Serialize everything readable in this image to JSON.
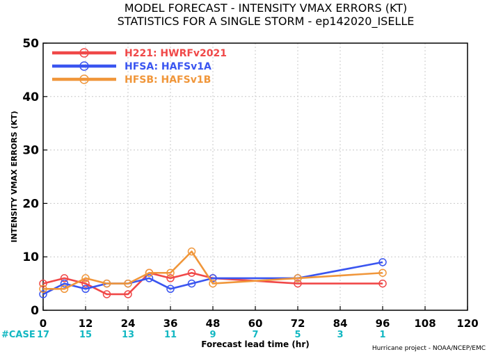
{
  "chart_data": {
    "type": "line",
    "title": "MODEL FORECAST - INTENSITY VMAX ERRORS (KT)",
    "subtitle": "STATISTICS FOR A SINGLE STORM - ep142020_ISELLE",
    "xlabel": "Forecast lead time (hr)",
    "ylabel": "INTENSITY VMAX ERRORS (KT)",
    "xlim": [
      0,
      120
    ],
    "ylim": [
      0,
      50
    ],
    "xticks": [
      0,
      12,
      24,
      36,
      48,
      60,
      72,
      84,
      96,
      108,
      120
    ],
    "yticks": [
      0,
      10,
      20,
      30,
      40,
      50
    ],
    "grid": true,
    "legend_position": "top-left",
    "case_label": "#CASE",
    "cases": [
      {
        "x": 0,
        "n": "17"
      },
      {
        "x": 12,
        "n": "15"
      },
      {
        "x": 24,
        "n": "13"
      },
      {
        "x": 36,
        "n": "11"
      },
      {
        "x": 48,
        "n": "9"
      },
      {
        "x": 60,
        "n": "7"
      },
      {
        "x": 72,
        "n": "5"
      },
      {
        "x": 84,
        "n": "3"
      },
      {
        "x": 96,
        "n": "1"
      }
    ],
    "credit": "Hurricane project - NOAA/NCEP/EMC",
    "series": [
      {
        "name": "H221: HWRFv2021",
        "color": "#f04848",
        "points": [
          [
            0,
            5
          ],
          [
            6,
            6
          ],
          [
            12,
            5
          ],
          [
            18,
            3
          ],
          [
            24,
            3
          ],
          [
            30,
            7
          ],
          [
            36,
            6
          ],
          [
            42,
            7
          ],
          [
            48,
            6
          ],
          [
            72,
            5
          ],
          [
            96,
            5
          ]
        ]
      },
      {
        "name": "HFSA: HAFSv1A",
        "color": "#3a55f0",
        "points": [
          [
            0,
            3
          ],
          [
            6,
            5
          ],
          [
            12,
            4
          ],
          [
            18,
            5
          ],
          [
            24,
            5
          ],
          [
            30,
            6
          ],
          [
            36,
            4
          ],
          [
            42,
            5
          ],
          [
            48,
            6
          ],
          [
            72,
            6
          ],
          [
            96,
            9
          ]
        ]
      },
      {
        "name": "HFSB: HAFSv1B",
        "color": "#f0963a",
        "points": [
          [
            0,
            4
          ],
          [
            6,
            4
          ],
          [
            12,
            6
          ],
          [
            18,
            5
          ],
          [
            24,
            5
          ],
          [
            30,
            7
          ],
          [
            36,
            7
          ],
          [
            42,
            11
          ],
          [
            48,
            5
          ],
          [
            72,
            6
          ],
          [
            96,
            7
          ]
        ]
      }
    ]
  }
}
